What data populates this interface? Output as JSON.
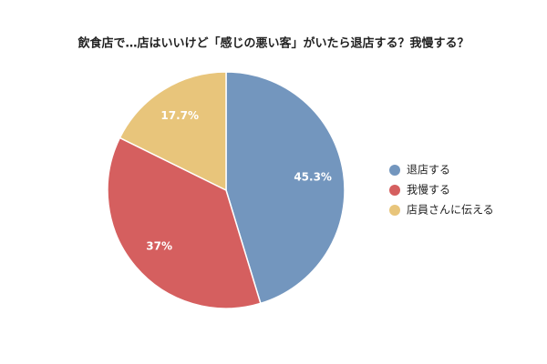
{
  "chart_data": {
    "type": "pie",
    "title": "飲食店で…店はいいけど「感じの悪い客」がいたら退店する？我慢する？",
    "categories": [
      "退店する",
      "我慢する",
      "店員さんに伝える"
    ],
    "values": [
      45.3,
      37,
      17.7
    ],
    "value_labels": [
      "45.3%",
      "37%",
      "17.7%"
    ],
    "colors": [
      "#7396be",
      "#d55f5f",
      "#e8c57b"
    ],
    "legend": "right"
  }
}
